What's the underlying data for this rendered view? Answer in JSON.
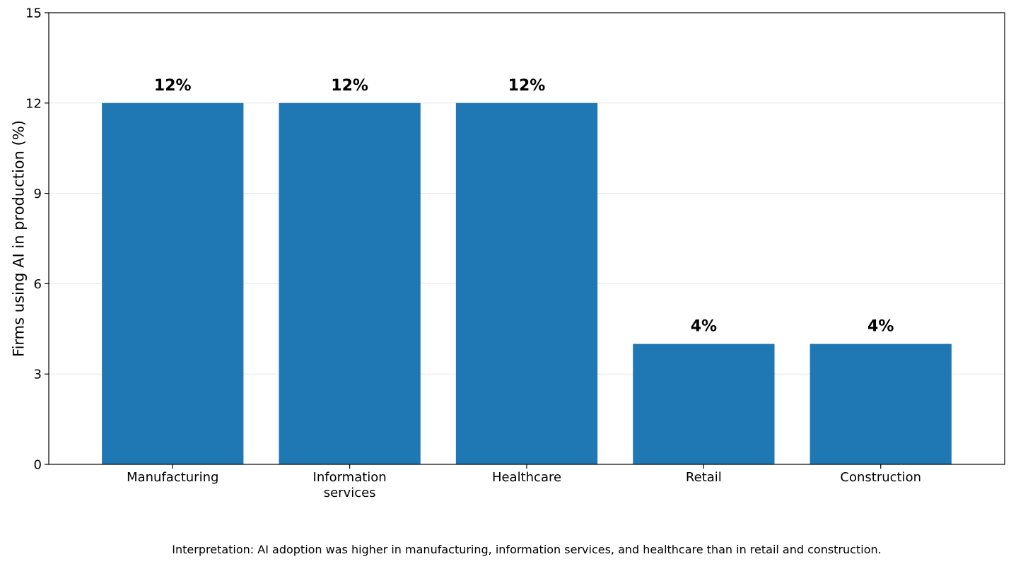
{
  "chart_data": {
    "type": "bar",
    "categories": [
      "Manufacturing",
      "Information services",
      "Healthcare",
      "Retail",
      "Construction"
    ],
    "category_lines": [
      [
        "Manufacturing"
      ],
      [
        "Information",
        "services"
      ],
      [
        "Healthcare"
      ],
      [
        "Retail"
      ],
      [
        "Construction"
      ]
    ],
    "values": [
      12,
      12,
      12,
      4,
      4
    ],
    "value_labels": [
      "12%",
      "12%",
      "12%",
      "4%",
      "4%"
    ],
    "title": "",
    "xlabel": "",
    "ylabel": "Firms using AI in production (%)",
    "ylim": [
      0,
      15
    ],
    "yticks": [
      0,
      3,
      6,
      9,
      12,
      15
    ],
    "ytick_labels": [
      "0",
      "3",
      "6",
      "9",
      "12",
      "15"
    ],
    "grid": "horizontal",
    "legend": "none",
    "bar_color": "#1f77b4",
    "grid_color": "#e6e6e6"
  },
  "caption": "Interpretation: AI adoption was higher in manufacturing, information services, and healthcare than in retail and construction."
}
